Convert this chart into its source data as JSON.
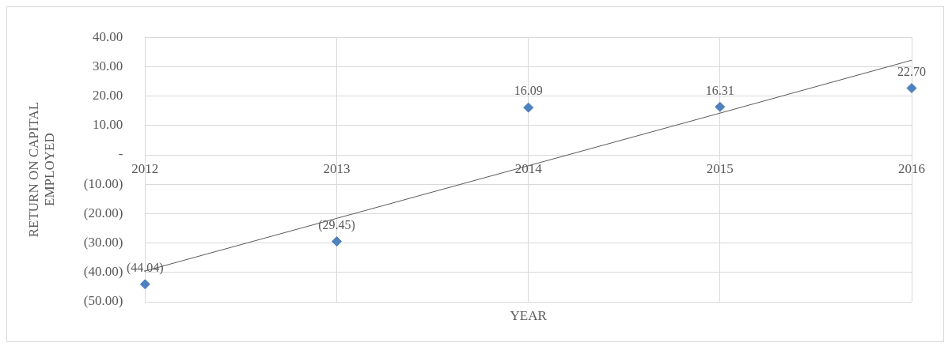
{
  "chart_data": {
    "type": "scatter",
    "xlabel": "YEAR",
    "ylabel": "RETURN ON CAPITAL EMPLOYED",
    "categories": [
      "2012",
      "2013",
      "2014",
      "2015",
      "2016"
    ],
    "series": [
      {
        "color": "#4f81bd",
        "values": [
          -44.04,
          -29.45,
          16.09,
          16.31,
          22.7
        ],
        "value_labels": [
          "(44.04)",
          "(29.45)",
          "16.09",
          "16.31",
          "22.70"
        ]
      },
      {
        "type": "line",
        "color": "#595959",
        "values": [
          -39.5,
          -21.6,
          -3.7,
          14.2,
          32.2
        ],
        "marker": "none"
      }
    ],
    "ylim": [
      -50,
      40
    ],
    "yticks": [
      {
        "value": 40,
        "label": "40.00"
      },
      {
        "value": 30,
        "label": "30.00"
      },
      {
        "value": 20,
        "label": "20.00"
      },
      {
        "value": 10,
        "label": "10.00"
      },
      {
        "value": 0,
        "label": "-"
      },
      {
        "value": -10,
        "label": "(10.00)"
      },
      {
        "value": -20,
        "label": "(20.00)"
      },
      {
        "value": -30,
        "label": "(30.00)"
      },
      {
        "value": -40,
        "label": "(40.00)"
      },
      {
        "value": -50,
        "label": "(50.00)"
      }
    ],
    "grid": true,
    "legend": false,
    "marker": "diamond"
  }
}
